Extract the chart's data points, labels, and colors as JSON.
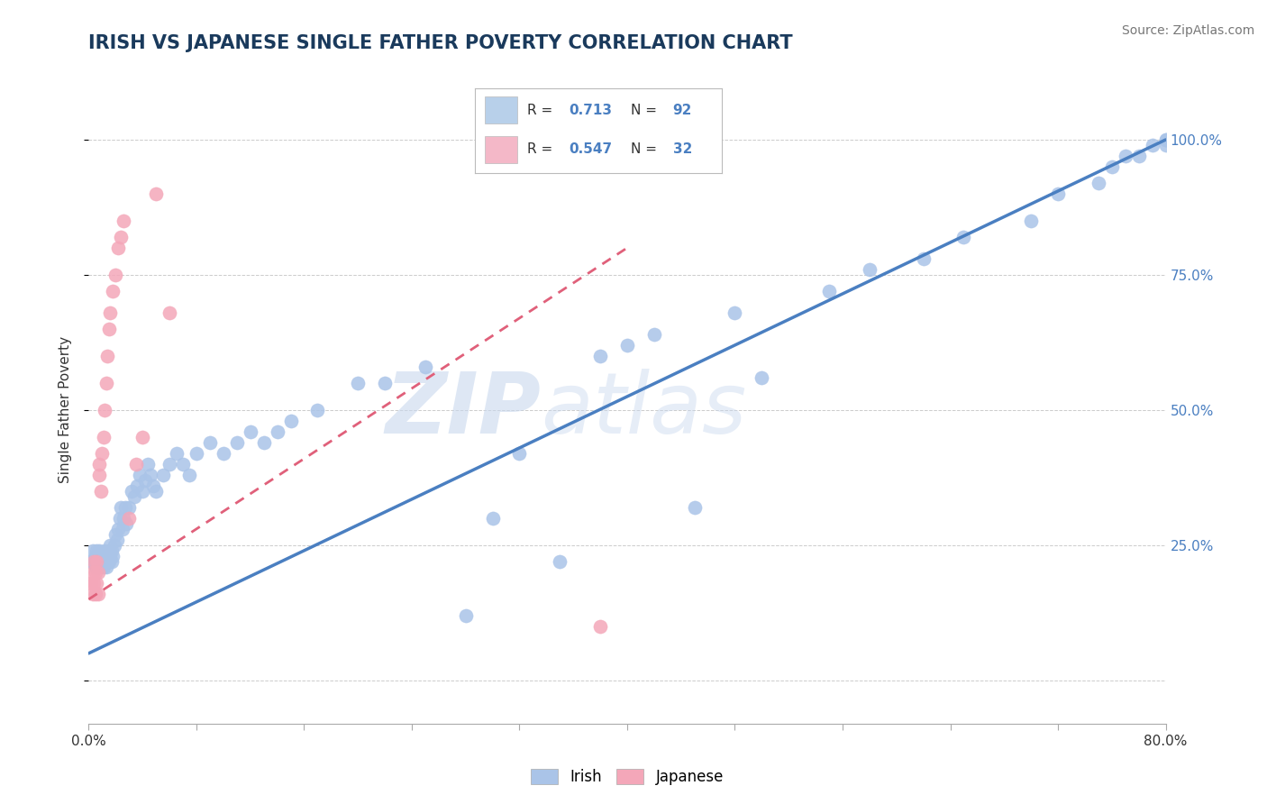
{
  "title": "IRISH VS JAPANESE SINGLE FATHER POVERTY CORRELATION CHART",
  "source": "Source: ZipAtlas.com",
  "ylabel_label": "Single Father Poverty",
  "x_min": 0.0,
  "x_max": 0.8,
  "y_min": -0.08,
  "y_max": 1.08,
  "irish_R": 0.713,
  "irish_N": 92,
  "japanese_R": 0.547,
  "japanese_N": 32,
  "irish_color": "#aac4e8",
  "irish_line_color": "#4a7fc1",
  "japanese_color": "#f4a7b9",
  "japanese_line_color": "#e0607a",
  "legend_color_irish": "#b8d0ea",
  "legend_color_japanese": "#f4b8c8",
  "watermark": "ZIPatlas",
  "watermark_color": "#d0dff0",
  "grid_color": "#cccccc",
  "title_color": "#1a3a5c",
  "source_color": "#777777",
  "tick_label_color": "#4a7fc1",
  "irish_scatter_x": [
    0.002,
    0.003,
    0.004,
    0.005,
    0.005,
    0.006,
    0.006,
    0.007,
    0.007,
    0.008,
    0.008,
    0.009,
    0.009,
    0.01,
    0.01,
    0.011,
    0.011,
    0.012,
    0.012,
    0.013,
    0.013,
    0.014,
    0.014,
    0.015,
    0.015,
    0.016,
    0.016,
    0.017,
    0.017,
    0.018,
    0.019,
    0.02,
    0.021,
    0.022,
    0.023,
    0.024,
    0.025,
    0.026,
    0.027,
    0.028,
    0.03,
    0.032,
    0.034,
    0.036,
    0.038,
    0.04,
    0.042,
    0.044,
    0.046,
    0.048,
    0.05,
    0.055,
    0.06,
    0.065,
    0.07,
    0.075,
    0.08,
    0.09,
    0.1,
    0.11,
    0.12,
    0.13,
    0.14,
    0.15,
    0.17,
    0.2,
    0.22,
    0.25,
    0.28,
    0.3,
    0.32,
    0.35,
    0.38,
    0.4,
    0.42,
    0.45,
    0.48,
    0.5,
    0.55,
    0.58,
    0.62,
    0.65,
    0.7,
    0.72,
    0.75,
    0.76,
    0.77,
    0.78,
    0.79,
    0.8,
    0.8,
    0.8
  ],
  "irish_scatter_y": [
    0.22,
    0.24,
    0.22,
    0.21,
    0.23,
    0.22,
    0.24,
    0.21,
    0.23,
    0.22,
    0.24,
    0.22,
    0.21,
    0.23,
    0.22,
    0.21,
    0.23,
    0.22,
    0.24,
    0.22,
    0.21,
    0.23,
    0.22,
    0.24,
    0.22,
    0.23,
    0.25,
    0.22,
    0.24,
    0.23,
    0.25,
    0.27,
    0.26,
    0.28,
    0.3,
    0.32,
    0.28,
    0.3,
    0.32,
    0.29,
    0.32,
    0.35,
    0.34,
    0.36,
    0.38,
    0.35,
    0.37,
    0.4,
    0.38,
    0.36,
    0.35,
    0.38,
    0.4,
    0.42,
    0.4,
    0.38,
    0.42,
    0.44,
    0.42,
    0.44,
    0.46,
    0.44,
    0.46,
    0.48,
    0.5,
    0.55,
    0.55,
    0.58,
    0.12,
    0.3,
    0.42,
    0.22,
    0.6,
    0.62,
    0.64,
    0.32,
    0.68,
    0.56,
    0.72,
    0.76,
    0.78,
    0.82,
    0.85,
    0.9,
    0.92,
    0.95,
    0.97,
    0.97,
    0.99,
    0.99,
    1.0,
    1.0
  ],
  "japanese_scatter_x": [
    0.002,
    0.003,
    0.003,
    0.004,
    0.004,
    0.005,
    0.005,
    0.006,
    0.006,
    0.007,
    0.007,
    0.008,
    0.008,
    0.009,
    0.01,
    0.011,
    0.012,
    0.013,
    0.014,
    0.015,
    0.016,
    0.018,
    0.02,
    0.022,
    0.024,
    0.026,
    0.03,
    0.035,
    0.04,
    0.05,
    0.06,
    0.38
  ],
  "japanese_scatter_y": [
    0.18,
    0.2,
    0.16,
    0.22,
    0.18,
    0.2,
    0.16,
    0.22,
    0.18,
    0.2,
    0.16,
    0.38,
    0.4,
    0.35,
    0.42,
    0.45,
    0.5,
    0.55,
    0.6,
    0.65,
    0.68,
    0.72,
    0.75,
    0.8,
    0.82,
    0.85,
    0.3,
    0.4,
    0.45,
    0.9,
    0.68,
    0.1
  ],
  "irish_line_x": [
    0.0,
    0.8
  ],
  "irish_line_y": [
    0.05,
    1.0
  ],
  "japanese_line_x": [
    0.0,
    0.4
  ],
  "japanese_line_y": [
    0.15,
    0.8
  ]
}
